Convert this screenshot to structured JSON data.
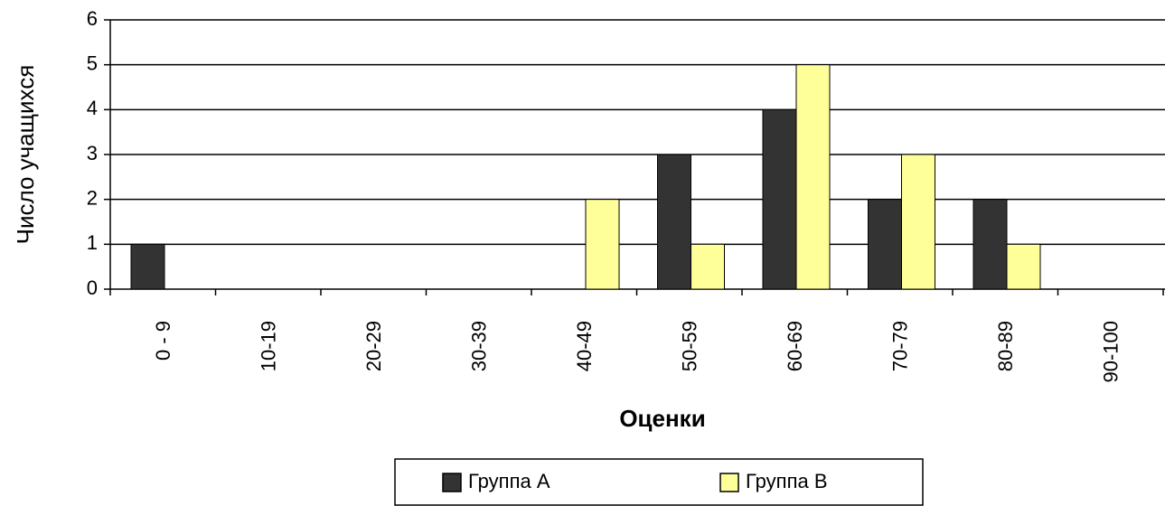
{
  "chart_data": {
    "type": "bar",
    "categories": [
      "0 - 9",
      "10-19",
      "20-29",
      "30-39",
      "40-49",
      "50-59",
      "60-69",
      "70-79",
      "80-89",
      "90-100"
    ],
    "series": [
      {
        "name": "Группа А",
        "color": "#333333",
        "values": [
          1,
          0,
          0,
          0,
          0,
          3,
          4,
          2,
          2,
          0
        ]
      },
      {
        "name": "Группа В",
        "color": "#ffff99",
        "values": [
          0,
          0,
          0,
          0,
          2,
          1,
          5,
          3,
          1,
          0
        ]
      }
    ],
    "xlabel": "Оценки",
    "ylabel": "Число учащихся",
    "ylim": [
      0,
      6
    ],
    "yticks": [
      0,
      1,
      2,
      3,
      4,
      5,
      6
    ],
    "grid": true,
    "legend": "bottom"
  }
}
